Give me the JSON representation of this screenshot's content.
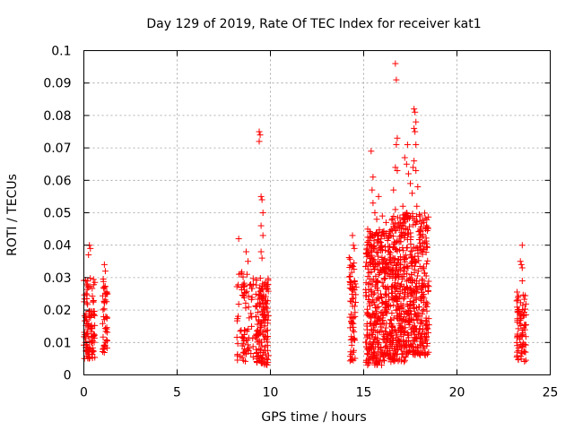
{
  "chart_data": {
    "type": "scatter",
    "title": "Day 129 of 2019, Rate Of TEC Index for receiver kat1",
    "xlabel": "GPS time / hours",
    "ylabel": "ROTI / TECUs",
    "xlim": [
      0,
      25
    ],
    "ylim": [
      0,
      0.1
    ],
    "xticks": [
      0,
      5,
      10,
      15,
      20,
      25
    ],
    "xtick_labels": [
      "0",
      "5",
      "10",
      "15",
      "20",
      "25"
    ],
    "yticks": [
      0,
      0.01,
      0.02,
      0.03,
      0.04,
      0.05,
      0.06,
      0.07,
      0.08,
      0.09,
      0.1
    ],
    "ytick_labels": [
      "0",
      "0.01",
      "0.02",
      "0.03",
      "0.04",
      "0.05",
      "0.06",
      "0.07",
      "0.08",
      "0.09",
      "0.1"
    ],
    "grid": true,
    "marker": "+",
    "marker_color": "#ff0000",
    "clusters": [
      {
        "x_range": [
          0.0,
          0.6
        ],
        "y_range": [
          0.005,
          0.03
        ],
        "count": 110
      },
      {
        "x_range": [
          1.0,
          1.3
        ],
        "y_range": [
          0.006,
          0.03
        ],
        "count": 45
      },
      {
        "x_range": [
          8.2,
          9.1
        ],
        "y_range": [
          0.004,
          0.032
        ],
        "count": 80
      },
      {
        "x_range": [
          9.2,
          9.9
        ],
        "y_range": [
          0.003,
          0.03
        ],
        "count": 150
      },
      {
        "x_range": [
          14.2,
          14.6
        ],
        "y_range": [
          0.004,
          0.038
        ],
        "count": 70
      },
      {
        "x_range": [
          15.1,
          16.4
        ],
        "y_range": [
          0.003,
          0.045
        ],
        "count": 380
      },
      {
        "x_range": [
          16.4,
          17.4
        ],
        "y_range": [
          0.004,
          0.05
        ],
        "count": 320
      },
      {
        "x_range": [
          17.4,
          18.5
        ],
        "y_range": [
          0.006,
          0.05
        ],
        "count": 300
      },
      {
        "x_range": [
          23.2,
          23.7
        ],
        "y_range": [
          0.004,
          0.026
        ],
        "count": 80
      }
    ],
    "points": [
      [
        0.3,
        0.04
      ],
      [
        0.35,
        0.039
      ],
      [
        0.25,
        0.037
      ],
      [
        1.1,
        0.034
      ],
      [
        1.15,
        0.032
      ],
      [
        8.3,
        0.042
      ],
      [
        8.7,
        0.038
      ],
      [
        8.8,
        0.035
      ],
      [
        9.4,
        0.075
      ],
      [
        9.45,
        0.074
      ],
      [
        9.4,
        0.072
      ],
      [
        9.5,
        0.055
      ],
      [
        9.55,
        0.054
      ],
      [
        9.6,
        0.05
      ],
      [
        9.5,
        0.046
      ],
      [
        9.6,
        0.043
      ],
      [
        9.5,
        0.038
      ],
      [
        9.55,
        0.036
      ],
      [
        14.4,
        0.043
      ],
      [
        14.45,
        0.04
      ],
      [
        14.5,
        0.039
      ],
      [
        15.4,
        0.069
      ],
      [
        15.5,
        0.061
      ],
      [
        15.45,
        0.057
      ],
      [
        15.5,
        0.053
      ],
      [
        15.6,
        0.05
      ],
      [
        15.7,
        0.048
      ],
      [
        15.8,
        0.055
      ],
      [
        16.0,
        0.049
      ],
      [
        16.2,
        0.047
      ],
      [
        16.7,
        0.096
      ],
      [
        16.75,
        0.091
      ],
      [
        16.8,
        0.073
      ],
      [
        16.75,
        0.071
      ],
      [
        16.7,
        0.064
      ],
      [
        16.8,
        0.063
      ],
      [
        16.6,
        0.057
      ],
      [
        16.7,
        0.051
      ],
      [
        16.9,
        0.046
      ],
      [
        17.1,
        0.052
      ],
      [
        17.2,
        0.067
      ],
      [
        17.35,
        0.071
      ],
      [
        17.3,
        0.065
      ],
      [
        17.4,
        0.062
      ],
      [
        17.5,
        0.059
      ],
      [
        17.6,
        0.056
      ],
      [
        17.7,
        0.082
      ],
      [
        17.75,
        0.081
      ],
      [
        17.8,
        0.078
      ],
      [
        17.7,
        0.076
      ],
      [
        17.75,
        0.075
      ],
      [
        17.8,
        0.071
      ],
      [
        17.7,
        0.066
      ],
      [
        17.65,
        0.064
      ],
      [
        17.8,
        0.063
      ],
      [
        17.9,
        0.058
      ],
      [
        17.85,
        0.052
      ],
      [
        17.3,
        0.05
      ],
      [
        17.2,
        0.048
      ],
      [
        17.5,
        0.049
      ],
      [
        23.5,
        0.04
      ],
      [
        23.4,
        0.035
      ],
      [
        23.45,
        0.034
      ],
      [
        23.5,
        0.033
      ],
      [
        23.5,
        0.029
      ]
    ]
  }
}
